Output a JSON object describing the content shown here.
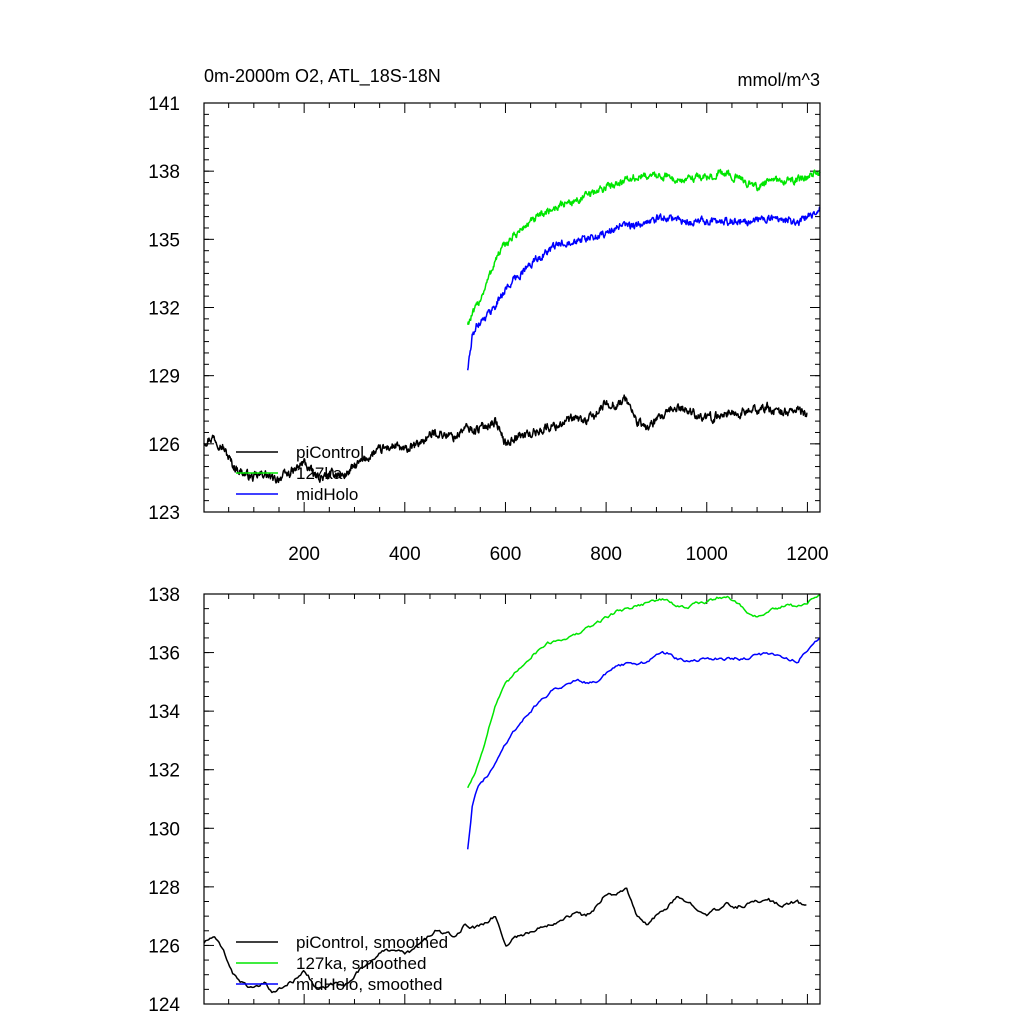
{
  "chart_data": [
    {
      "type": "line",
      "title": "0m-2000m O2, ATL_18S-18N",
      "units": "mmol/m^3",
      "xlim": [
        1,
        1225
      ],
      "ylim": [
        123,
        141
      ],
      "x_ticks": [
        200,
        400,
        600,
        800,
        1000,
        1200
      ],
      "y_ticks": [
        123,
        126,
        129,
        132,
        135,
        138,
        141
      ],
      "legend": {
        "placement": "bottom-left"
      },
      "series": [
        {
          "name": "piControl",
          "color": "#000000",
          "noise": 0.35,
          "x": [
            1,
            20,
            40,
            60,
            80,
            100,
            120,
            140,
            160,
            180,
            200,
            220,
            240,
            260,
            280,
            300,
            320,
            340,
            360,
            380,
            400,
            420,
            440,
            460,
            480,
            500,
            520,
            540,
            560,
            580,
            600,
            620,
            640,
            660,
            680,
            700,
            720,
            740,
            760,
            780,
            800,
            820,
            840,
            860,
            880,
            900,
            920,
            940,
            960,
            980,
            1000,
            1020,
            1040,
            1060,
            1080,
            1100,
            1120,
            1140,
            1160,
            1180,
            1200
          ],
          "values": [
            126.1,
            126.3,
            125.8,
            125.0,
            124.7,
            124.5,
            124.7,
            124.4,
            124.6,
            124.8,
            125.2,
            124.6,
            124.5,
            124.7,
            124.6,
            125.0,
            125.3,
            125.6,
            125.8,
            125.9,
            125.7,
            125.9,
            126.2,
            126.5,
            126.4,
            126.3,
            126.7,
            126.6,
            126.8,
            127.0,
            126.0,
            126.3,
            126.4,
            126.5,
            126.7,
            126.8,
            127.0,
            127.1,
            127.0,
            127.3,
            127.8,
            127.7,
            128.0,
            127.0,
            126.7,
            127.0,
            127.3,
            127.6,
            127.5,
            127.3,
            127.1,
            127.2,
            127.4,
            127.3,
            127.4,
            127.5,
            127.6,
            127.4,
            127.4,
            127.5,
            127.3
          ]
        },
        {
          "name": "127ka",
          "color": "#00e600",
          "noise": 0.3,
          "x": [
            525,
            540,
            560,
            580,
            600,
            620,
            640,
            660,
            680,
            700,
            720,
            740,
            760,
            780,
            800,
            820,
            840,
            860,
            880,
            900,
            920,
            940,
            960,
            980,
            1000,
            1020,
            1040,
            1060,
            1080,
            1100,
            1120,
            1140,
            1160,
            1180,
            1200,
            1225
          ],
          "values": [
            131.3,
            131.9,
            132.9,
            134.1,
            134.8,
            135.2,
            135.6,
            135.9,
            136.2,
            136.4,
            136.6,
            136.7,
            136.9,
            137.1,
            137.3,
            137.5,
            137.6,
            137.7,
            137.8,
            137.8,
            137.8,
            137.6,
            137.6,
            137.8,
            137.7,
            137.9,
            137.9,
            137.7,
            137.5,
            137.3,
            137.5,
            137.6,
            137.6,
            137.6,
            137.7,
            138.0
          ]
        },
        {
          "name": "midHolo",
          "color": "#0000ff",
          "noise": 0.3,
          "x": [
            525,
            535,
            545,
            560,
            580,
            600,
            620,
            640,
            660,
            680,
            700,
            720,
            740,
            760,
            780,
            800,
            820,
            840,
            860,
            880,
            900,
            920,
            940,
            960,
            980,
            1000,
            1020,
            1040,
            1060,
            1080,
            1100,
            1120,
            1140,
            1160,
            1180,
            1200,
            1225
          ],
          "values": [
            129.3,
            130.8,
            131.3,
            131.6,
            132.1,
            132.8,
            133.3,
            133.7,
            134.1,
            134.4,
            134.7,
            134.9,
            135.0,
            135.0,
            135.1,
            135.3,
            135.5,
            135.6,
            135.6,
            135.7,
            135.9,
            136.0,
            135.9,
            135.7,
            135.8,
            135.8,
            135.8,
            135.8,
            135.8,
            135.8,
            135.9,
            135.9,
            135.9,
            135.9,
            135.7,
            136.0,
            136.4
          ]
        }
      ]
    },
    {
      "type": "line",
      "title": "",
      "xlim": [
        1,
        1225
      ],
      "ylim": [
        124,
        138
      ],
      "x_ticks": [
        200,
        400,
        600,
        800,
        1000,
        1200
      ],
      "y_ticks": [
        124,
        126,
        128,
        130,
        132,
        134,
        136,
        138
      ],
      "legend": {
        "placement": "bottom-left"
      },
      "series": [
        {
          "name": "piControl, smoothed",
          "color": "#000000",
          "noise": 0.12,
          "x": [
            1,
            20,
            40,
            60,
            80,
            100,
            120,
            140,
            160,
            180,
            200,
            220,
            240,
            260,
            280,
            300,
            320,
            340,
            360,
            380,
            400,
            420,
            440,
            460,
            480,
            500,
            520,
            540,
            560,
            580,
            600,
            620,
            640,
            660,
            680,
            700,
            720,
            740,
            760,
            780,
            800,
            820,
            840,
            860,
            880,
            900,
            920,
            940,
            960,
            980,
            1000,
            1020,
            1040,
            1060,
            1080,
            1100,
            1120,
            1140,
            1160,
            1180,
            1200
          ],
          "values": [
            126.1,
            126.3,
            125.8,
            125.0,
            124.7,
            124.5,
            124.7,
            124.4,
            124.6,
            124.8,
            125.2,
            124.6,
            124.5,
            124.7,
            124.6,
            125.0,
            125.3,
            125.6,
            125.8,
            125.9,
            125.7,
            125.9,
            126.2,
            126.5,
            126.4,
            126.3,
            126.7,
            126.6,
            126.8,
            127.0,
            126.0,
            126.3,
            126.4,
            126.5,
            126.7,
            126.8,
            127.0,
            127.1,
            127.0,
            127.3,
            127.8,
            127.7,
            128.0,
            127.0,
            126.7,
            127.0,
            127.3,
            127.6,
            127.5,
            127.3,
            127.1,
            127.2,
            127.4,
            127.3,
            127.4,
            127.5,
            127.6,
            127.4,
            127.4,
            127.5,
            127.3
          ]
        },
        {
          "name": "127ka, smoothed",
          "color": "#00e600",
          "noise": 0.1,
          "x": [
            525,
            540,
            560,
            580,
            600,
            620,
            640,
            660,
            680,
            700,
            720,
            740,
            760,
            780,
            800,
            820,
            840,
            860,
            880,
            900,
            920,
            940,
            960,
            980,
            1000,
            1020,
            1040,
            1060,
            1080,
            1100,
            1120,
            1140,
            1160,
            1180,
            1200,
            1225
          ],
          "values": [
            131.4,
            131.9,
            133.0,
            134.2,
            134.9,
            135.3,
            135.7,
            136.0,
            136.3,
            136.4,
            136.5,
            136.6,
            136.8,
            137.0,
            137.2,
            137.4,
            137.5,
            137.6,
            137.7,
            137.8,
            137.8,
            137.6,
            137.5,
            137.7,
            137.7,
            137.9,
            137.9,
            137.7,
            137.4,
            137.2,
            137.4,
            137.5,
            137.6,
            137.6,
            137.7,
            138.0
          ]
        },
        {
          "name": "midHolo, smoothed",
          "color": "#0000ff",
          "noise": 0.1,
          "x": [
            525,
            535,
            545,
            560,
            580,
            600,
            620,
            640,
            660,
            680,
            700,
            720,
            740,
            760,
            780,
            800,
            820,
            840,
            860,
            880,
            900,
            920,
            940,
            960,
            980,
            1000,
            1020,
            1040,
            1060,
            1080,
            1100,
            1120,
            1140,
            1160,
            1180,
            1200,
            1225
          ],
          "values": [
            129.3,
            130.9,
            131.4,
            131.7,
            132.2,
            132.9,
            133.4,
            133.8,
            134.2,
            134.5,
            134.8,
            134.9,
            135.1,
            135.0,
            135.0,
            135.3,
            135.5,
            135.6,
            135.6,
            135.7,
            135.9,
            136.0,
            135.8,
            135.7,
            135.7,
            135.8,
            135.8,
            135.8,
            135.8,
            135.8,
            135.9,
            136.0,
            135.9,
            135.8,
            135.7,
            136.1,
            136.5
          ]
        }
      ]
    }
  ]
}
